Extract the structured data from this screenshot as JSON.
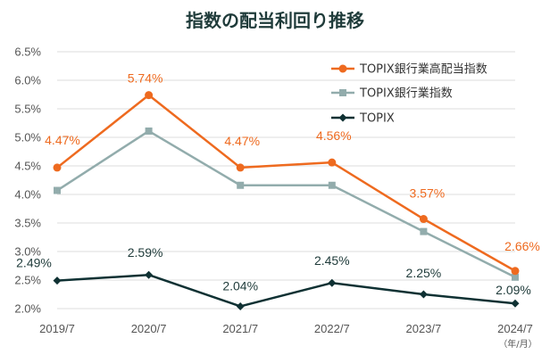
{
  "chart_data": {
    "type": "line",
    "title": "指数の配当利回り推移",
    "categories": [
      "2019/7",
      "2020/7",
      "2021/7",
      "2022/7",
      "2023/7",
      "2024/7"
    ],
    "x_unit": "（年/月）",
    "ylim": [
      2.0,
      6.5
    ],
    "yticks": [
      "6.5%",
      "6.0%",
      "5.5%",
      "5.0%",
      "4.5%",
      "4.0%",
      "3.5%",
      "3.0%",
      "2.5%",
      "2.0%"
    ],
    "grid": true,
    "legend_position": "top-right",
    "series": [
      {
        "name": "TOPIX銀行業高配当指数",
        "values": [
          4.47,
          5.74,
          4.47,
          4.56,
          3.57,
          2.66
        ],
        "data_labels": [
          "4.47%",
          "5.74%",
          "4.47%",
          "4.56%",
          "3.57%",
          "2.66%"
        ],
        "color": "#ee6a1f",
        "marker": "circle"
      },
      {
        "name": "TOPIX銀行業指数",
        "values": [
          4.07,
          5.11,
          4.16,
          4.16,
          3.35,
          2.55
        ],
        "color": "#92acac",
        "marker": "square"
      },
      {
        "name": "TOPIX",
        "values": [
          2.49,
          2.59,
          2.04,
          2.45,
          2.25,
          2.09
        ],
        "data_labels": [
          "2.49%",
          "2.59%",
          "2.04%",
          "2.45%",
          "2.25%",
          "2.09%"
        ],
        "color": "#0f3133",
        "marker": "diamond"
      }
    ]
  }
}
